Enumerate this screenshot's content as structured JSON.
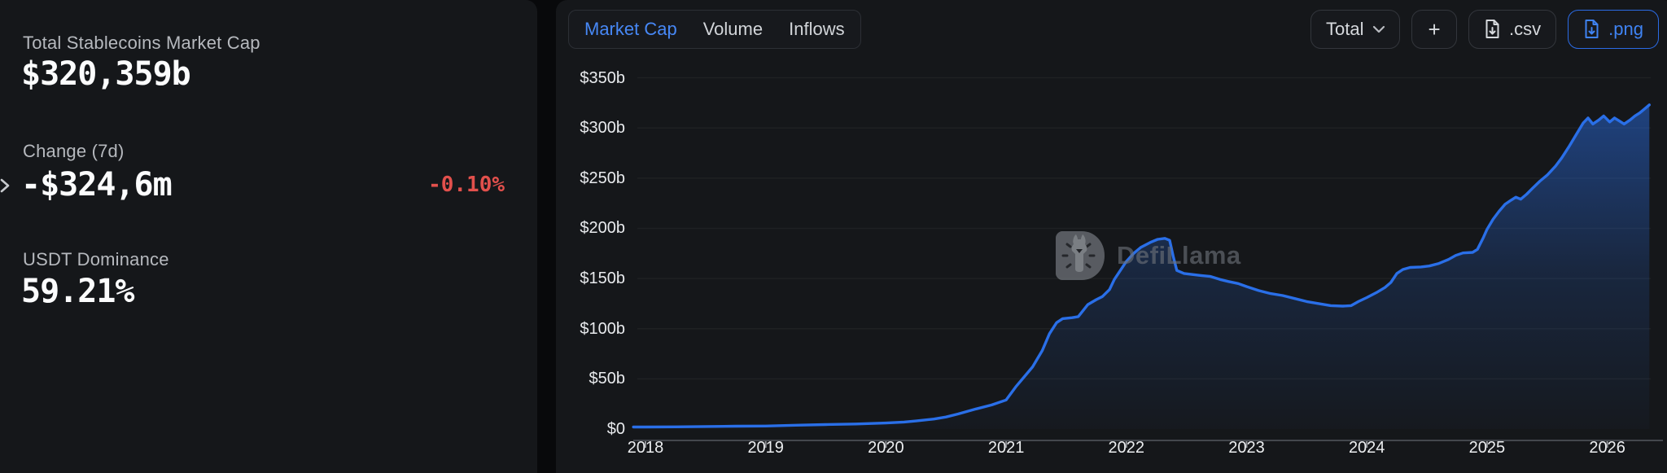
{
  "stats": [
    {
      "label": "Total Stablecoins Market Cap",
      "value": "$320,359b"
    },
    {
      "label": "Change (7d)",
      "value": "-$324,6m",
      "change_pct": "-0.10%"
    },
    {
      "label": "USDT Dominance",
      "value": "59.21%"
    }
  ],
  "tabs": [
    {
      "label": "Market Cap",
      "active": true
    },
    {
      "label": "Volume",
      "active": false
    },
    {
      "label": "Inflows",
      "active": false
    }
  ],
  "controls": {
    "total_label": "Total",
    "plus_label": "+",
    "csv_label": ".csv",
    "png_label": ".png"
  },
  "watermark": "DefiLlama",
  "colors": {
    "accent_blue": "#2a6fe8",
    "tab_active_blue": "#4788f6",
    "png_blue": "#3f83f3",
    "negative_red": "#e2504c",
    "panel_bg": "#15171a",
    "page_bg": "#08090b"
  },
  "chart_data": {
    "type": "area",
    "title": "Total Stablecoins Market Cap",
    "xlabel": "",
    "ylabel": "",
    "x_ticks": [
      "2018",
      "2019",
      "2020",
      "2021",
      "2022",
      "2023",
      "2024",
      "2025",
      "2026"
    ],
    "y_ticks": [
      {
        "label": "$0",
        "value": 0
      },
      {
        "label": "$50b",
        "value": 50
      },
      {
        "label": "$100b",
        "value": 100
      },
      {
        "label": "$150b",
        "value": 150
      },
      {
        "label": "$200b",
        "value": 200
      },
      {
        "label": "$250b",
        "value": 250
      },
      {
        "label": "$300b",
        "value": 300
      },
      {
        "label": "$350b",
        "value": 350
      }
    ],
    "xlim": [
      2017.9,
      2026.42
    ],
    "ylim": [
      0,
      370
    ],
    "grid": "faint-horizontal",
    "legend": "none",
    "series": [
      {
        "name": "Total Stablecoins Market Cap ($b)",
        "points": [
          [
            2017.9,
            2
          ],
          [
            2018.0,
            2
          ],
          [
            2018.25,
            2.2
          ],
          [
            2018.5,
            2.5
          ],
          [
            2018.75,
            2.8
          ],
          [
            2019.0,
            3
          ],
          [
            2019.25,
            3.8
          ],
          [
            2019.5,
            4.5
          ],
          [
            2019.75,
            5
          ],
          [
            2020.0,
            6
          ],
          [
            2020.15,
            7
          ],
          [
            2020.25,
            8
          ],
          [
            2020.4,
            10
          ],
          [
            2020.5,
            12
          ],
          [
            2020.6,
            15
          ],
          [
            2020.75,
            20
          ],
          [
            2020.88,
            24
          ],
          [
            2021.0,
            29
          ],
          [
            2021.08,
            42
          ],
          [
            2021.15,
            52
          ],
          [
            2021.22,
            62
          ],
          [
            2021.3,
            78
          ],
          [
            2021.36,
            95
          ],
          [
            2021.42,
            106
          ],
          [
            2021.47,
            110
          ],
          [
            2021.55,
            111
          ],
          [
            2021.6,
            112
          ],
          [
            2021.68,
            124
          ],
          [
            2021.75,
            129
          ],
          [
            2021.8,
            132
          ],
          [
            2021.86,
            139
          ],
          [
            2021.9,
            149
          ],
          [
            2021.95,
            158
          ],
          [
            2022.0,
            167
          ],
          [
            2022.06,
            175
          ],
          [
            2022.12,
            181
          ],
          [
            2022.2,
            186
          ],
          [
            2022.26,
            189
          ],
          [
            2022.32,
            190
          ],
          [
            2022.36,
            188
          ],
          [
            2022.39,
            172
          ],
          [
            2022.42,
            158
          ],
          [
            2022.48,
            155
          ],
          [
            2022.55,
            154
          ],
          [
            2022.62,
            153
          ],
          [
            2022.7,
            152
          ],
          [
            2022.78,
            149
          ],
          [
            2022.85,
            147
          ],
          [
            2022.93,
            145
          ],
          [
            2023.0,
            142
          ],
          [
            2023.1,
            138
          ],
          [
            2023.2,
            135
          ],
          [
            2023.3,
            133
          ],
          [
            2023.4,
            130
          ],
          [
            2023.5,
            127
          ],
          [
            2023.6,
            125
          ],
          [
            2023.7,
            123
          ],
          [
            2023.8,
            122.5
          ],
          [
            2023.87,
            123
          ],
          [
            2023.93,
            127
          ],
          [
            2024.0,
            131
          ],
          [
            2024.08,
            136
          ],
          [
            2024.15,
            141
          ],
          [
            2024.2,
            146
          ],
          [
            2024.25,
            155
          ],
          [
            2024.3,
            159
          ],
          [
            2024.36,
            161
          ],
          [
            2024.45,
            161.5
          ],
          [
            2024.52,
            162.5
          ],
          [
            2024.6,
            165
          ],
          [
            2024.68,
            169
          ],
          [
            2024.74,
            173
          ],
          [
            2024.8,
            175.5
          ],
          [
            2024.88,
            176
          ],
          [
            2024.92,
            179
          ],
          [
            2024.97,
            191
          ],
          [
            2025.0,
            199
          ],
          [
            2025.05,
            209
          ],
          [
            2025.1,
            217
          ],
          [
            2025.15,
            224
          ],
          [
            2025.2,
            228
          ],
          [
            2025.24,
            231
          ],
          [
            2025.28,
            229
          ],
          [
            2025.33,
            234
          ],
          [
            2025.38,
            240
          ],
          [
            2025.44,
            247
          ],
          [
            2025.5,
            253
          ],
          [
            2025.57,
            262
          ],
          [
            2025.62,
            270
          ],
          [
            2025.68,
            281
          ],
          [
            2025.74,
            293
          ],
          [
            2025.8,
            305
          ],
          [
            2025.84,
            310
          ],
          [
            2025.88,
            304
          ],
          [
            2025.93,
            308
          ],
          [
            2025.97,
            312
          ],
          [
            2026.02,
            306
          ],
          [
            2026.06,
            310
          ],
          [
            2026.1,
            307
          ],
          [
            2026.14,
            304
          ],
          [
            2026.19,
            308
          ],
          [
            2026.23,
            312
          ],
          [
            2026.27,
            315
          ],
          [
            2026.31,
            319
          ],
          [
            2026.35,
            323
          ]
        ]
      }
    ]
  }
}
